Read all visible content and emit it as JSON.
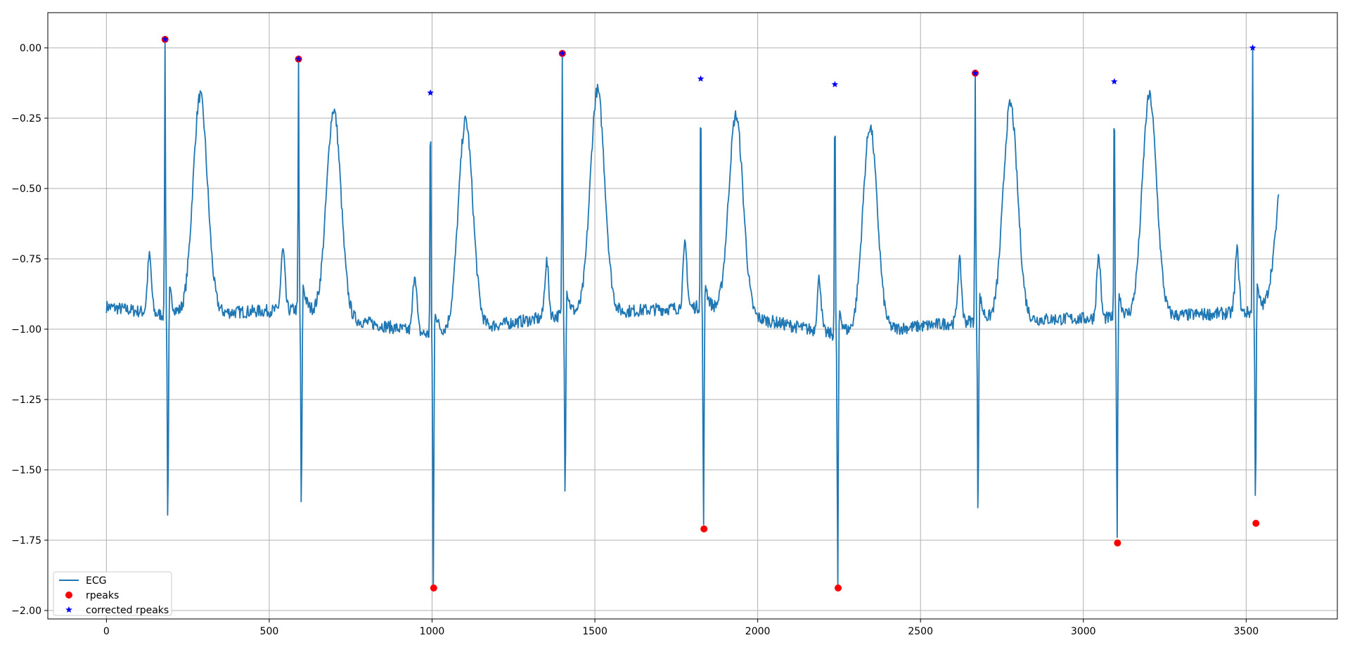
{
  "chart_data": {
    "type": "line",
    "title": "",
    "xlabel": "",
    "ylabel": "",
    "xlim": [
      -180,
      3780
    ],
    "ylim": [
      -2.03,
      0.125
    ],
    "grid": true,
    "legend_position": "lower-left",
    "x_ticks": [
      0,
      500,
      1000,
      1500,
      2000,
      2500,
      3000,
      3500
    ],
    "x_tick_labels": [
      "0",
      "500",
      "1000",
      "1500",
      "2000",
      "2500",
      "3000",
      "3500"
    ],
    "y_ticks": [
      0,
      -0.25,
      -0.5,
      -0.75,
      -1.0,
      -1.25,
      -1.5,
      -1.75,
      -2.0
    ],
    "y_tick_labels": [
      "0.00",
      "−0.25",
      "−0.50",
      "−0.75",
      "−1.00",
      "−1.25",
      "−1.50",
      "−1.75",
      "−2.00"
    ],
    "series": [
      {
        "name": "ECG",
        "style": "line",
        "color": "#1f77b4",
        "beats": [
          {
            "r": 180,
            "rv": 0.03,
            "sv": -1.76,
            "pv": -0.74,
            "tv": -0.17,
            "base": -0.95
          },
          {
            "r": 590,
            "rv": -0.04,
            "sv": -1.73,
            "pv": -0.72,
            "tv": -0.22,
            "base": -0.93
          },
          {
            "r": 995,
            "rv": -0.16,
            "sv": -1.92,
            "pv": -0.8,
            "tv": -0.26,
            "base": -1.02
          },
          {
            "r": 1400,
            "rv": -0.02,
            "sv": -1.66,
            "pv": -0.76,
            "tv": -0.15,
            "base": -0.95
          },
          {
            "r": 1825,
            "rv": -0.11,
            "sv": -1.71,
            "pv": -0.7,
            "tv": -0.24,
            "base": -0.92
          },
          {
            "r": 2237,
            "rv": -0.13,
            "sv": -1.92,
            "pv": -0.82,
            "tv": -0.28,
            "base": -1.02
          },
          {
            "r": 2668,
            "rv": -0.09,
            "sv": -1.72,
            "pv": -0.76,
            "tv": -0.2,
            "base": -0.97
          },
          {
            "r": 3095,
            "rv": -0.12,
            "sv": -1.76,
            "pv": -0.74,
            "tv": -0.17,
            "base": -0.96
          },
          {
            "r": 3520,
            "rv": 0.0,
            "sv": -1.69,
            "pv": -0.72,
            "tv": -0.52,
            "base": -0.94
          }
        ],
        "x_range": [
          0,
          3600
        ],
        "start_value": -0.92,
        "end_value": -0.52
      },
      {
        "name": "rpeaks",
        "style": "marker-circle",
        "color": "#ff0000",
        "points": [
          [
            180,
            0.03
          ],
          [
            590,
            -0.04
          ],
          [
            1005,
            -1.92
          ],
          [
            1400,
            -0.02
          ],
          [
            1835,
            -1.71
          ],
          [
            2247,
            -1.92
          ],
          [
            2668,
            -0.09
          ],
          [
            3105,
            -1.76
          ],
          [
            3530,
            -1.69
          ]
        ]
      },
      {
        "name": "corrected rpeaks",
        "style": "marker-star",
        "color": "#0000ff",
        "points": [
          [
            180,
            0.03
          ],
          [
            590,
            -0.04
          ],
          [
            995,
            -0.16
          ],
          [
            1400,
            -0.02
          ],
          [
            1825,
            -0.11
          ],
          [
            2237,
            -0.13
          ],
          [
            2668,
            -0.09
          ],
          [
            3095,
            -0.12
          ],
          [
            3520,
            0.0
          ]
        ]
      }
    ]
  }
}
